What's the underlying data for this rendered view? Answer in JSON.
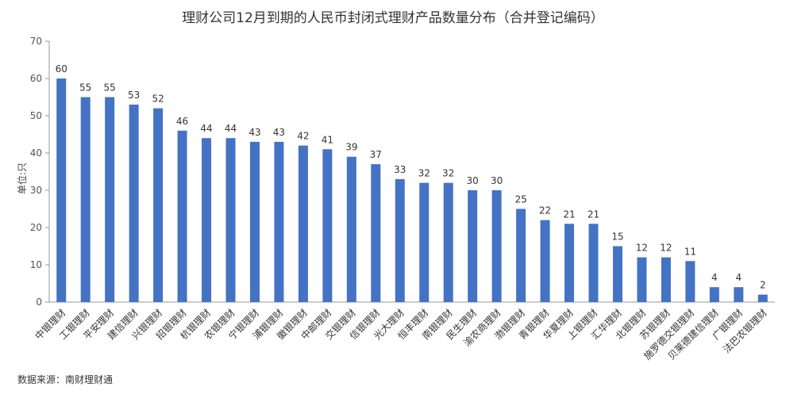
{
  "chart_data": {
    "type": "bar",
    "title": "理财公司12月到期的人民币封闭式理财产品数量分布（合并登记编码）",
    "xlabel": "",
    "ylabel": "单位:只",
    "ylim": [
      0,
      70
    ],
    "yticks": [
      0,
      10,
      20,
      30,
      40,
      50,
      60,
      70
    ],
    "grid": false,
    "legend": "none",
    "bar_color": "#4472C4",
    "categories": [
      "中银理财",
      "工银理财",
      "平安理财",
      "建信理财",
      "兴银理财",
      "招银理财",
      "杭银理财",
      "农银理财",
      "宁银理财",
      "浦银理财",
      "徽银理财",
      "中邮理财",
      "交银理财",
      "信银理财",
      "光大理财",
      "恒丰理财",
      "南银理财",
      "民生理财",
      "渝农商理财",
      "渤银理财",
      "青银理财",
      "华夏理财",
      "上银理财",
      "汇华理财",
      "北银理财",
      "苏银理财",
      "施罗德交银理财",
      "贝莱德建信理财",
      "广银理财",
      "法巴农银理财"
    ],
    "values": [
      60,
      55,
      55,
      53,
      52,
      46,
      44,
      44,
      43,
      43,
      42,
      41,
      39,
      37,
      33,
      32,
      32,
      30,
      30,
      25,
      22,
      21,
      21,
      15,
      12,
      12,
      11,
      4,
      4,
      2
    ]
  },
  "source_note": "数据来源：南财理财通"
}
